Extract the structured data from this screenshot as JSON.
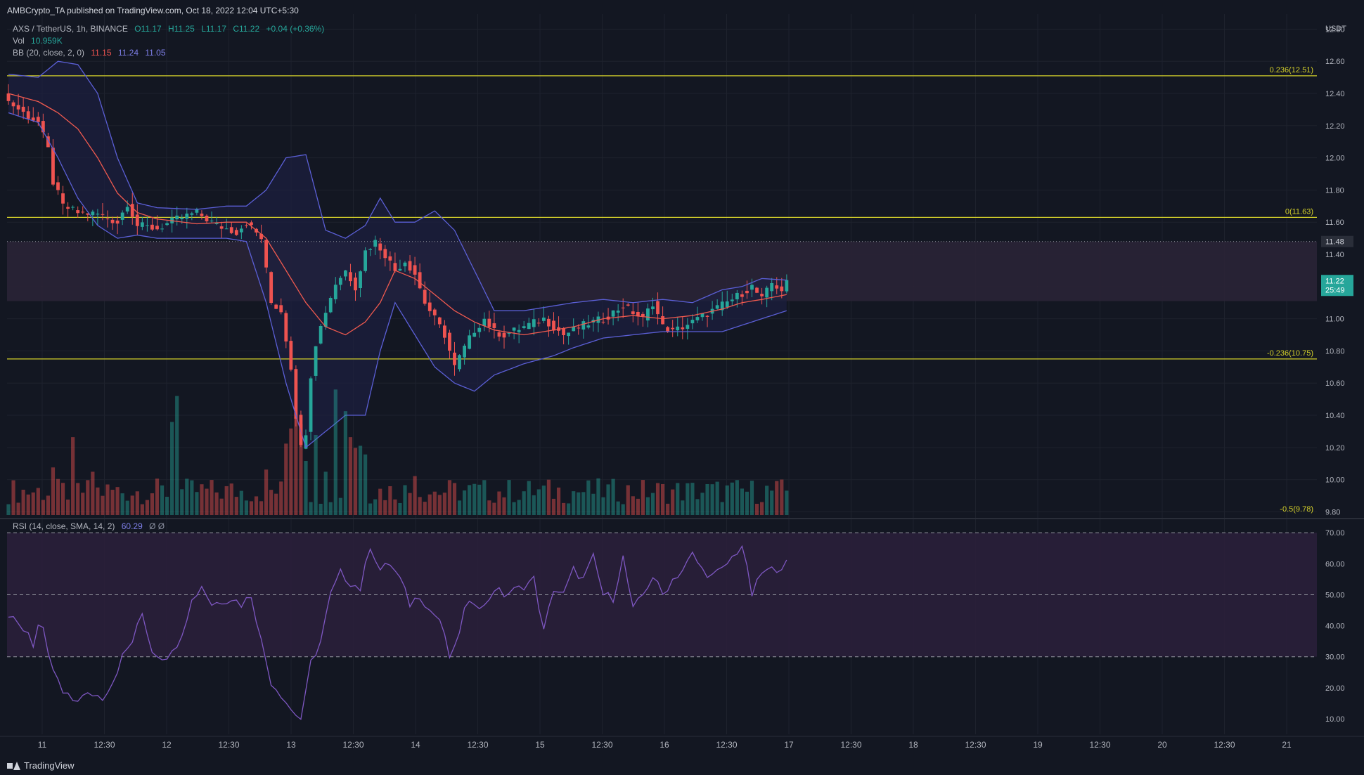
{
  "header": {
    "published": "AMBCrypto_TA published on TradingView.com, Oct 18, 2022 12:04 UTC+5:30"
  },
  "legend": {
    "symbol": "AXS / TetherUS, 1h, BINANCE",
    "open": "O11.17",
    "high": "H11.25",
    "low": "L11.17",
    "close": "C11.22",
    "change": "+0.04 (+0.36%)",
    "vol_label": "Vol",
    "vol_value": "10.959K",
    "bb_label": "BB (20, close, 2, 0)",
    "bb_basis": "11.15",
    "bb_upper": "11.24",
    "bb_lower": "11.05",
    "rsi_label": "RSI (14, close, SMA, 14, 2)",
    "rsi_value": "60.29",
    "rsi_null": "Ø Ø"
  },
  "footer": {
    "brand": "TradingView"
  },
  "colors": {
    "bg": "#131722",
    "up": "#26a69a",
    "down": "#ef5350",
    "bb": "#5b5fd6",
    "basis": "#f05a4f",
    "fib": "#d4d02a",
    "rsi": "#7e57c2",
    "rsi_band": "#2a1f3a",
    "zone": "#2a2336",
    "badge": "#26a69a"
  },
  "chart_data": [
    {
      "type": "candlestick",
      "title": "AXS / TetherUS, 1h, BINANCE",
      "currency_label": "USDT",
      "ylim": [
        9.78,
        12.85
      ],
      "y_ticks": [
        "12.80",
        "12.60",
        "12.40",
        "12.20",
        "12.00",
        "11.80",
        "11.60",
        "11.40",
        "11.20",
        "11.00",
        "10.80",
        "10.60",
        "10.40",
        "10.20",
        "10.00",
        "9.80"
      ],
      "x_ticks": [
        "11",
        "12:30",
        "12",
        "12:30",
        "13",
        "12:30",
        "14",
        "12:30",
        "15",
        "12:30",
        "16",
        "12:30",
        "17",
        "12:30",
        "18",
        "12:30",
        "19",
        "12:30",
        "20",
        "12:30",
        "21"
      ],
      "fib_levels": [
        {
          "label": "0.236(12.51)",
          "value": 12.51
        },
        {
          "label": "0(11.63)",
          "value": 11.63
        },
        {
          "label": "-0.236(10.75)",
          "value": 10.75
        },
        {
          "label": "-0.5(9.78)",
          "value": 9.78
        }
      ],
      "dotted_level": {
        "label": "11.48",
        "value": 11.48
      },
      "last_price": {
        "label": "11.22",
        "countdown": "25:49",
        "value": 11.22
      },
      "zone": {
        "top": 11.48,
        "bottom": 11.11
      },
      "close_path": [
        [
          0,
          12.35
        ],
        [
          3,
          12.28
        ],
        [
          6,
          12.22
        ],
        [
          8,
          12.05
        ],
        [
          9,
          11.85
        ],
        [
          11,
          11.7
        ],
        [
          14,
          11.66
        ],
        [
          18,
          11.65
        ],
        [
          22,
          11.6
        ],
        [
          24,
          11.72
        ],
        [
          26,
          11.58
        ],
        [
          30,
          11.56
        ],
        [
          34,
          11.62
        ],
        [
          38,
          11.66
        ],
        [
          42,
          11.58
        ],
        [
          46,
          11.54
        ],
        [
          48,
          11.6
        ],
        [
          51,
          11.5
        ],
        [
          53,
          11.1
        ],
        [
          55,
          11.05
        ],
        [
          57,
          10.7
        ],
        [
          58,
          10.4
        ],
        [
          59,
          10.2
        ],
        [
          60,
          10.3
        ],
        [
          61,
          10.65
        ],
        [
          62,
          10.85
        ],
        [
          64,
          11.05
        ],
        [
          66,
          11.22
        ],
        [
          68,
          11.3
        ],
        [
          70,
          11.2
        ],
        [
          72,
          11.42
        ],
        [
          74,
          11.48
        ],
        [
          76,
          11.4
        ],
        [
          78,
          11.3
        ],
        [
          80,
          11.36
        ],
        [
          82,
          11.28
        ],
        [
          84,
          11.1
        ],
        [
          86,
          11.0
        ],
        [
          88,
          10.9
        ],
        [
          90,
          10.7
        ],
        [
          92,
          10.82
        ],
        [
          94,
          10.93
        ],
        [
          96,
          11.0
        ],
        [
          98,
          10.92
        ],
        [
          100,
          10.9
        ],
        [
          104,
          10.95
        ],
        [
          108,
          11.0
        ],
        [
          112,
          10.9
        ],
        [
          116,
          10.96
        ],
        [
          120,
          11.0
        ],
        [
          124,
          11.08
        ],
        [
          128,
          11.0
        ],
        [
          130,
          11.1
        ],
        [
          132,
          10.95
        ],
        [
          134,
          10.92
        ],
        [
          138,
          10.98
        ],
        [
          142,
          11.05
        ],
        [
          146,
          11.12
        ],
        [
          150,
          11.2
        ],
        [
          152,
          11.12
        ],
        [
          154,
          11.22
        ],
        [
          156,
          11.18
        ],
        [
          157,
          11.22
        ]
      ],
      "upper_path": [
        [
          0,
          12.52
        ],
        [
          6,
          12.5
        ],
        [
          10,
          12.6
        ],
        [
          14,
          12.58
        ],
        [
          18,
          12.4
        ],
        [
          22,
          12.0
        ],
        [
          26,
          11.72
        ],
        [
          30,
          11.69
        ],
        [
          38,
          11.68
        ],
        [
          44,
          11.7
        ],
        [
          48,
          11.7
        ],
        [
          52,
          11.8
        ],
        [
          56,
          12.0
        ],
        [
          60,
          12.02
        ],
        [
          64,
          11.55
        ],
        [
          68,
          11.5
        ],
        [
          72,
          11.58
        ],
        [
          75,
          11.75
        ],
        [
          78,
          11.6
        ],
        [
          82,
          11.6
        ],
        [
          86,
          11.67
        ],
        [
          90,
          11.55
        ],
        [
          94,
          11.3
        ],
        [
          98,
          11.05
        ],
        [
          104,
          11.05
        ],
        [
          110,
          11.08
        ],
        [
          114,
          11.1
        ],
        [
          120,
          11.12
        ],
        [
          126,
          11.1
        ],
        [
          132,
          11.12
        ],
        [
          138,
          11.1
        ],
        [
          144,
          11.18
        ],
        [
          148,
          11.2
        ],
        [
          152,
          11.25
        ],
        [
          157,
          11.24
        ]
      ],
      "lower_path": [
        [
          0,
          12.28
        ],
        [
          6,
          12.22
        ],
        [
          10,
          12.0
        ],
        [
          14,
          11.75
        ],
        [
          18,
          11.58
        ],
        [
          22,
          11.5
        ],
        [
          26,
          11.52
        ],
        [
          30,
          11.5
        ],
        [
          38,
          11.5
        ],
        [
          44,
          11.5
        ],
        [
          48,
          11.48
        ],
        [
          52,
          11.1
        ],
        [
          56,
          10.6
        ],
        [
          60,
          10.2
        ],
        [
          64,
          10.3
        ],
        [
          68,
          10.4
        ],
        [
          72,
          10.4
        ],
        [
          75,
          10.8
        ],
        [
          78,
          11.1
        ],
        [
          82,
          10.9
        ],
        [
          86,
          10.7
        ],
        [
          90,
          10.6
        ],
        [
          94,
          10.55
        ],
        [
          98,
          10.65
        ],
        [
          104,
          10.72
        ],
        [
          110,
          10.77
        ],
        [
          114,
          10.82
        ],
        [
          120,
          10.88
        ],
        [
          126,
          10.9
        ],
        [
          132,
          10.92
        ],
        [
          138,
          10.92
        ],
        [
          144,
          10.92
        ],
        [
          148,
          10.96
        ],
        [
          152,
          11.0
        ],
        [
          157,
          11.05
        ]
      ],
      "basis_path": [
        [
          0,
          12.4
        ],
        [
          6,
          12.35
        ],
        [
          10,
          12.28
        ],
        [
          14,
          12.18
        ],
        [
          18,
          12.0
        ],
        [
          22,
          11.78
        ],
        [
          26,
          11.66
        ],
        [
          30,
          11.62
        ],
        [
          38,
          11.59
        ],
        [
          44,
          11.6
        ],
        [
          48,
          11.6
        ],
        [
          52,
          11.5
        ],
        [
          56,
          11.3
        ],
        [
          60,
          11.1
        ],
        [
          64,
          10.95
        ],
        [
          68,
          10.9
        ],
        [
          72,
          10.98
        ],
        [
          75,
          11.1
        ],
        [
          78,
          11.3
        ],
        [
          82,
          11.25
        ],
        [
          86,
          11.15
        ],
        [
          90,
          11.05
        ],
        [
          94,
          10.98
        ],
        [
          98,
          10.93
        ],
        [
          104,
          10.9
        ],
        [
          110,
          10.93
        ],
        [
          114,
          10.95
        ],
        [
          120,
          11.0
        ],
        [
          126,
          11.02
        ],
        [
          132,
          11.0
        ],
        [
          138,
          11.02
        ],
        [
          144,
          11.06
        ],
        [
          148,
          11.1
        ],
        [
          152,
          11.12
        ],
        [
          157,
          11.15
        ]
      ],
      "volume_spikes": [
        [
          9,
          0.22
        ],
        [
          13,
          0.36
        ],
        [
          17,
          0.2
        ],
        [
          33,
          0.43
        ],
        [
          34,
          0.55
        ],
        [
          52,
          0.21
        ],
        [
          56,
          0.33
        ],
        [
          57,
          0.4
        ],
        [
          58,
          0.45
        ],
        [
          59,
          0.42
        ],
        [
          60,
          0.25
        ],
        [
          62,
          0.37
        ],
        [
          64,
          0.2
        ],
        [
          66,
          0.58
        ],
        [
          68,
          0.48
        ],
        [
          69,
          0.36
        ],
        [
          70,
          0.31
        ],
        [
          71,
          0.32
        ],
        [
          72,
          0.28
        ],
        [
          82,
          0.18
        ]
      ]
    },
    {
      "type": "line",
      "title": "RSI (14, close, SMA, 14, 2)",
      "ylim": [
        5,
        73
      ],
      "y_ticks": [
        "70.00",
        "60.00",
        "50.00",
        "40.00",
        "30.00",
        "20.00",
        "10.00"
      ],
      "levels": [
        70,
        50,
        30
      ],
      "band": [
        30,
        70
      ],
      "values": [
        [
          0,
          43
        ],
        [
          2,
          40
        ],
        [
          4,
          38
        ],
        [
          5,
          34
        ],
        [
          6,
          40
        ],
        [
          7,
          38
        ],
        [
          8,
          30
        ],
        [
          10,
          22
        ],
        [
          11,
          18
        ],
        [
          13,
          16
        ],
        [
          15,
          17
        ],
        [
          17,
          18
        ],
        [
          19,
          17
        ],
        [
          21,
          22
        ],
        [
          23,
          30
        ],
        [
          25,
          35
        ],
        [
          27,
          44
        ],
        [
          29,
          32
        ],
        [
          31,
          30
        ],
        [
          33,
          31
        ],
        [
          35,
          38
        ],
        [
          37,
          48
        ],
        [
          39,
          53
        ],
        [
          41,
          47
        ],
        [
          43,
          48
        ],
        [
          45,
          49
        ],
        [
          47,
          47
        ],
        [
          49,
          50
        ],
        [
          51,
          35
        ],
        [
          53,
          22
        ],
        [
          55,
          18
        ],
        [
          57,
          13
        ],
        [
          59,
          10
        ],
        [
          60,
          18
        ],
        [
          61,
          28
        ],
        [
          63,
          35
        ],
        [
          65,
          50
        ],
        [
          67,
          57
        ],
        [
          69,
          54
        ],
        [
          71,
          52
        ],
        [
          73,
          66
        ],
        [
          75,
          58
        ],
        [
          77,
          60
        ],
        [
          79,
          55
        ],
        [
          81,
          47
        ],
        [
          83,
          50
        ],
        [
          85,
          45
        ],
        [
          87,
          42
        ],
        [
          89,
          30
        ],
        [
          90,
          32
        ],
        [
          92,
          45
        ],
        [
          94,
          48
        ],
        [
          96,
          46
        ],
        [
          98,
          52
        ],
        [
          100,
          50
        ],
        [
          103,
          52
        ],
        [
          106,
          55
        ],
        [
          108,
          38
        ],
        [
          110,
          52
        ],
        [
          112,
          50
        ],
        [
          114,
          58
        ],
        [
          116,
          55
        ],
        [
          118,
          62
        ],
        [
          120,
          50
        ],
        [
          122,
          49
        ],
        [
          124,
          62
        ],
        [
          126,
          45
        ],
        [
          128,
          50
        ],
        [
          130,
          56
        ],
        [
          132,
          50
        ],
        [
          134,
          55
        ],
        [
          136,
          58
        ],
        [
          138,
          63
        ],
        [
          140,
          58
        ],
        [
          142,
          56
        ],
        [
          144,
          58
        ],
        [
          146,
          62
        ],
        [
          148,
          66
        ],
        [
          150,
          50
        ],
        [
          152,
          57
        ],
        [
          154,
          58
        ],
        [
          157,
          60
        ]
      ]
    }
  ]
}
